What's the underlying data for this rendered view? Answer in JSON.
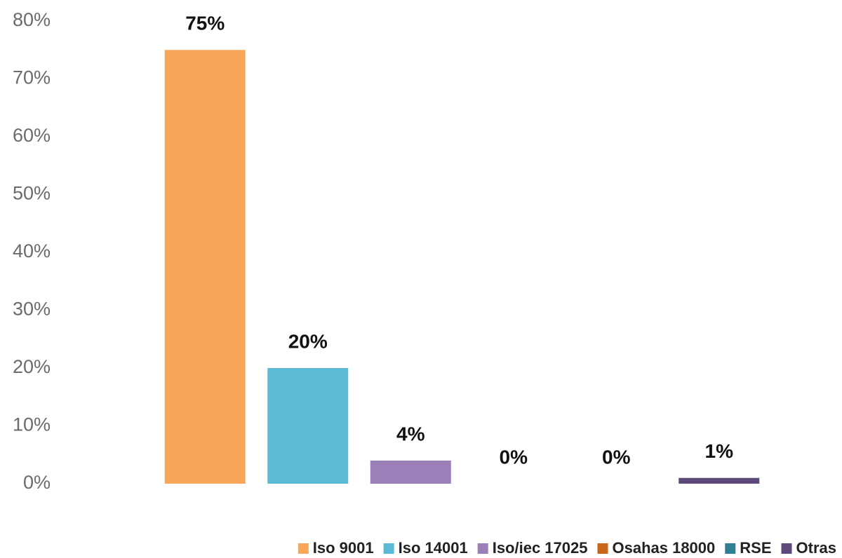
{
  "chart_data": {
    "type": "bar",
    "series": [
      {
        "name": "Iso 9001",
        "color": "#f9a65a",
        "values": [
          75
        ],
        "value_labels": [
          "75%"
        ]
      },
      {
        "name": "Iso 14001",
        "color": "#5bbad5",
        "values": [
          20
        ],
        "value_labels": [
          "20%"
        ]
      },
      {
        "name": "Iso/iec 17025",
        "color": "#9b7fb8",
        "values": [
          4
        ],
        "value_labels": [
          "4%"
        ]
      },
      {
        "name": "Osahas 18000",
        "color": "#c8671a",
        "values": [
          0
        ],
        "value_labels": [
          "0%"
        ]
      },
      {
        "name": "RSE",
        "color": "#2f7f95",
        "values": [
          0
        ],
        "value_labels": [
          "0%"
        ]
      },
      {
        "name": "Otras",
        "color": "#5d4a7a",
        "values": [
          1
        ],
        "value_labels": [
          "1%"
        ]
      }
    ],
    "ylim": [
      0,
      80
    ],
    "yticks": [
      {
        "value": 0,
        "label": "0%"
      },
      {
        "value": 10,
        "label": "10%"
      },
      {
        "value": 20,
        "label": "20%"
      },
      {
        "value": 30,
        "label": "30%"
      },
      {
        "value": 40,
        "label": "40%"
      },
      {
        "value": 50,
        "label": "50%"
      },
      {
        "value": 60,
        "label": "60%"
      },
      {
        "value": 70,
        "label": "70%"
      },
      {
        "value": 80,
        "label": "80%"
      }
    ],
    "legend": "bottom"
  }
}
